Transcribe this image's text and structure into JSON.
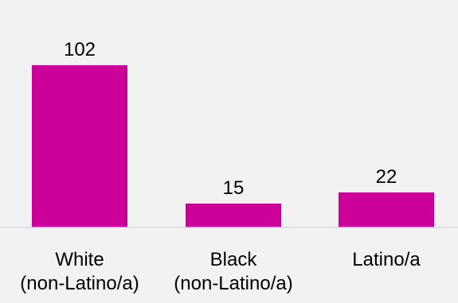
{
  "chart_data": {
    "type": "bar",
    "categories": [
      [
        "White",
        "(non-Latino/a)"
      ],
      [
        "Black",
        "(non-Latino/a)"
      ],
      [
        "Latino/a"
      ]
    ],
    "values": [
      102,
      15,
      22
    ],
    "data_labels": [
      "102",
      "15",
      "22"
    ],
    "ylim": [
      0,
      102
    ],
    "grid": false,
    "legend": "none",
    "colors": {
      "bar": "#cc0099",
      "axis": "#d9d9d9",
      "background": "#f2f2f2",
      "text": "#000000"
    }
  }
}
